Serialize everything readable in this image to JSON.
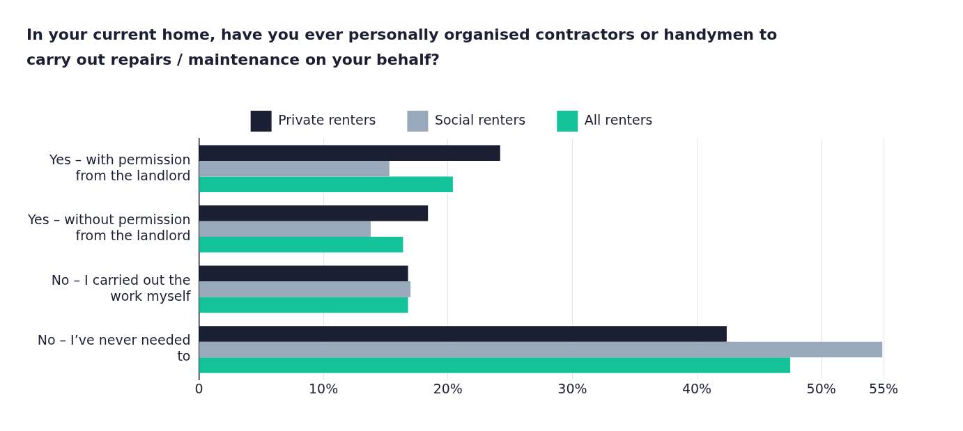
{
  "chart_data": {
    "type": "bar",
    "orientation": "horizontal",
    "title": "In your current home, have you ever personally organised contractors or handymen to carry out repairs / maintenance on your behalf?",
    "categories": [
      "Yes – with permission from the landlord",
      "Yes – without permission from the landlord",
      "No – I carried out the work myself",
      "No – I’ve never needed to"
    ],
    "series": [
      {
        "name": "Private renters",
        "color": "#1a1f33",
        "values": [
          24.2,
          18.4,
          16.8,
          42.4
        ]
      },
      {
        "name": "Social renters",
        "color": "#97a9bb",
        "values": [
          15.3,
          13.8,
          17.0,
          54.9
        ]
      },
      {
        "name": "All renters",
        "color": "#15c39a",
        "values": [
          20.4,
          16.4,
          16.8,
          47.5
        ]
      }
    ],
    "xlim": [
      0,
      55
    ],
    "xticks": [
      {
        "value": 0,
        "label": "0"
      },
      {
        "value": 10,
        "label": "10%"
      },
      {
        "value": 20,
        "label": "20%"
      },
      {
        "value": 30,
        "label": "30%"
      },
      {
        "value": 40,
        "label": "40%"
      },
      {
        "value": 50,
        "label": "50%"
      },
      {
        "value": 55,
        "label": "55%"
      }
    ],
    "grid": "x",
    "legend": "top"
  }
}
